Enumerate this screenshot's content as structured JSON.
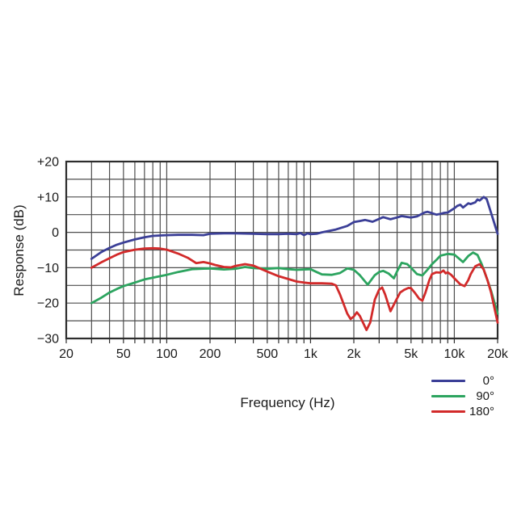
{
  "page": {
    "background": "#ffffff"
  },
  "chart_data": {
    "type": "line",
    "title": "",
    "xlabel": "Frequency (Hz)",
    "ylabel": "Response (dB)",
    "x_scale": "log",
    "xlim": [
      20,
      20000
    ],
    "ylim": [
      -30,
      20
    ],
    "grid": true,
    "grid_color": "#4d4d4d",
    "border_color": "#2d2d2d",
    "text_color": "#1b1b1b",
    "legend_position": "bottom-right",
    "x_gridlines": [
      20,
      30,
      40,
      50,
      60,
      70,
      80,
      90,
      100,
      200,
      300,
      400,
      500,
      600,
      700,
      800,
      900,
      1000,
      2000,
      3000,
      4000,
      5000,
      6000,
      7000,
      8000,
      9000,
      10000,
      20000
    ],
    "y_gridlines": [
      -30,
      -25,
      -20,
      -15,
      -10,
      -5,
      0,
      5,
      10,
      15,
      20
    ],
    "x_ticks": [
      {
        "value": 20,
        "label": "20"
      },
      {
        "value": 50,
        "label": "50"
      },
      {
        "value": 100,
        "label": "100"
      },
      {
        "value": 200,
        "label": "200"
      },
      {
        "value": 500,
        "label": "500"
      },
      {
        "value": 1000,
        "label": "1k"
      },
      {
        "value": 2000,
        "label": "2k"
      },
      {
        "value": 5000,
        "label": "5k"
      },
      {
        "value": 10000,
        "label": "10k"
      },
      {
        "value": 20000,
        "label": "20k"
      }
    ],
    "y_ticks": [
      {
        "value": 20,
        "label": "+20"
      },
      {
        "value": 10,
        "label": "+10"
      },
      {
        "value": 0,
        "label": "0"
      },
      {
        "value": -10,
        "label": "−10"
      },
      {
        "value": -20,
        "label": "−20"
      },
      {
        "value": -30,
        "label": "−30"
      }
    ],
    "series": [
      {
        "name": "0°",
        "color": "#3b3f97",
        "points": [
          [
            30,
            -7.5
          ],
          [
            35,
            -5.6
          ],
          [
            40,
            -4.4
          ],
          [
            45,
            -3.5
          ],
          [
            50,
            -2.9
          ],
          [
            60,
            -2.0
          ],
          [
            70,
            -1.4
          ],
          [
            80,
            -1.0
          ],
          [
            90,
            -0.9
          ],
          [
            100,
            -0.8
          ],
          [
            120,
            -0.7
          ],
          [
            150,
            -0.7
          ],
          [
            180,
            -0.8
          ],
          [
            200,
            -0.4
          ],
          [
            250,
            -0.3
          ],
          [
            300,
            -0.3
          ],
          [
            400,
            -0.4
          ],
          [
            500,
            -0.5
          ],
          [
            600,
            -0.5
          ],
          [
            700,
            -0.4
          ],
          [
            800,
            -0.5
          ],
          [
            850,
            -0.2
          ],
          [
            900,
            -0.8
          ],
          [
            950,
            -0.3
          ],
          [
            1000,
            -0.5
          ],
          [
            1100,
            -0.4
          ],
          [
            1200,
            0.0
          ],
          [
            1500,
            0.8
          ],
          [
            1800,
            1.8
          ],
          [
            2000,
            2.9
          ],
          [
            2200,
            3.2
          ],
          [
            2400,
            3.5
          ],
          [
            2700,
            3.0
          ],
          [
            3200,
            4.3
          ],
          [
            3600,
            3.7
          ],
          [
            4000,
            4.2
          ],
          [
            4300,
            4.6
          ],
          [
            5000,
            4.2
          ],
          [
            5500,
            4.5
          ],
          [
            6200,
            5.6
          ],
          [
            6500,
            5.8
          ],
          [
            7000,
            5.4
          ],
          [
            7500,
            5.0
          ],
          [
            8000,
            5.2
          ],
          [
            8500,
            5.5
          ],
          [
            9000,
            5.6
          ],
          [
            10000,
            6.8
          ],
          [
            10500,
            7.5
          ],
          [
            11000,
            7.8
          ],
          [
            11500,
            7.0
          ],
          [
            12000,
            7.6
          ],
          [
            12500,
            8.2
          ],
          [
            13000,
            8.0
          ],
          [
            14000,
            8.5
          ],
          [
            14500,
            9.3
          ],
          [
            15000,
            9.0
          ],
          [
            16000,
            10.0
          ],
          [
            16800,
            9.4
          ],
          [
            18000,
            5.5
          ],
          [
            19000,
            2.5
          ],
          [
            20000,
            -0.4
          ]
        ]
      },
      {
        "name": "90°",
        "color": "#2ca45f",
        "points": [
          [
            30,
            -20.0
          ],
          [
            35,
            -18.5
          ],
          [
            40,
            -17.0
          ],
          [
            45,
            -16.0
          ],
          [
            50,
            -15.2
          ],
          [
            60,
            -14.2
          ],
          [
            70,
            -13.3
          ],
          [
            80,
            -12.8
          ],
          [
            90,
            -12.4
          ],
          [
            100,
            -12.0
          ],
          [
            120,
            -11.2
          ],
          [
            150,
            -10.4
          ],
          [
            200,
            -10.2
          ],
          [
            250,
            -10.5
          ],
          [
            300,
            -10.3
          ],
          [
            350,
            -9.8
          ],
          [
            400,
            -10.1
          ],
          [
            500,
            -10.3
          ],
          [
            600,
            -10.1
          ],
          [
            700,
            -10.4
          ],
          [
            800,
            -10.6
          ],
          [
            1000,
            -10.4
          ],
          [
            1100,
            -11.2
          ],
          [
            1200,
            -11.9
          ],
          [
            1400,
            -12.0
          ],
          [
            1600,
            -11.5
          ],
          [
            1800,
            -10.2
          ],
          [
            2000,
            -10.6
          ],
          [
            2200,
            -12.1
          ],
          [
            2500,
            -14.8
          ],
          [
            2800,
            -12.1
          ],
          [
            3000,
            -11.2
          ],
          [
            3200,
            -10.9
          ],
          [
            3500,
            -11.7
          ],
          [
            3800,
            -13.0
          ],
          [
            4000,
            -11.0
          ],
          [
            4300,
            -8.6
          ],
          [
            4700,
            -9.0
          ],
          [
            5000,
            -10.0
          ],
          [
            5500,
            -11.8
          ],
          [
            6000,
            -12.2
          ],
          [
            6500,
            -10.6
          ],
          [
            7000,
            -9.0
          ],
          [
            7500,
            -7.8
          ],
          [
            8000,
            -6.6
          ],
          [
            9000,
            -6.1
          ],
          [
            10000,
            -6.3
          ],
          [
            10700,
            -7.3
          ],
          [
            11500,
            -8.4
          ],
          [
            12500,
            -6.7
          ],
          [
            13500,
            -5.7
          ],
          [
            14500,
            -6.4
          ],
          [
            15500,
            -9.0
          ],
          [
            17000,
            -13.5
          ],
          [
            18000,
            -16.5
          ],
          [
            20000,
            -23.0
          ]
        ]
      },
      {
        "name": "180°",
        "color": "#d22a2a",
        "points": [
          [
            30,
            -10.0
          ],
          [
            35,
            -8.5
          ],
          [
            40,
            -7.3
          ],
          [
            45,
            -6.3
          ],
          [
            50,
            -5.6
          ],
          [
            60,
            -4.9
          ],
          [
            70,
            -4.6
          ],
          [
            80,
            -4.5
          ],
          [
            90,
            -4.6
          ],
          [
            100,
            -4.9
          ],
          [
            120,
            -6.0
          ],
          [
            140,
            -7.2
          ],
          [
            160,
            -8.7
          ],
          [
            180,
            -8.4
          ],
          [
            200,
            -8.8
          ],
          [
            220,
            -9.3
          ],
          [
            250,
            -9.8
          ],
          [
            280,
            -9.9
          ],
          [
            300,
            -9.5
          ],
          [
            350,
            -9.0
          ],
          [
            400,
            -9.4
          ],
          [
            450,
            -10.3
          ],
          [
            500,
            -11.1
          ],
          [
            600,
            -12.4
          ],
          [
            700,
            -13.2
          ],
          [
            800,
            -13.9
          ],
          [
            900,
            -14.2
          ],
          [
            1000,
            -14.4
          ],
          [
            1200,
            -14.4
          ],
          [
            1400,
            -14.5
          ],
          [
            1500,
            -15.0
          ],
          [
            1600,
            -17.5
          ],
          [
            1800,
            -23.0
          ],
          [
            1900,
            -24.5
          ],
          [
            2000,
            -23.8
          ],
          [
            2100,
            -22.6
          ],
          [
            2200,
            -23.6
          ],
          [
            2450,
            -27.6
          ],
          [
            2600,
            -25.5
          ],
          [
            2800,
            -19.0
          ],
          [
            3000,
            -16.2
          ],
          [
            3150,
            -15.6
          ],
          [
            3300,
            -17.5
          ],
          [
            3600,
            -22.3
          ],
          [
            3900,
            -19.5
          ],
          [
            4200,
            -17.0
          ],
          [
            4500,
            -16.2
          ],
          [
            4800,
            -15.7
          ],
          [
            5000,
            -15.8
          ],
          [
            5300,
            -17.0
          ],
          [
            5700,
            -18.8
          ],
          [
            6000,
            -19.3
          ],
          [
            6300,
            -17.0
          ],
          [
            6700,
            -13.5
          ],
          [
            7000,
            -11.8
          ],
          [
            7500,
            -11.3
          ],
          [
            8000,
            -11.4
          ],
          [
            8400,
            -10.8
          ],
          [
            8700,
            -11.6
          ],
          [
            9000,
            -11.3
          ],
          [
            9500,
            -12.0
          ],
          [
            10000,
            -13.0
          ],
          [
            11000,
            -14.7
          ],
          [
            11800,
            -15.2
          ],
          [
            12500,
            -13.5
          ],
          [
            13000,
            -11.8
          ],
          [
            14000,
            -9.6
          ],
          [
            15000,
            -9.0
          ],
          [
            16000,
            -10.5
          ],
          [
            17000,
            -13.5
          ],
          [
            18000,
            -17.0
          ],
          [
            20000,
            -25.5
          ]
        ]
      }
    ]
  }
}
